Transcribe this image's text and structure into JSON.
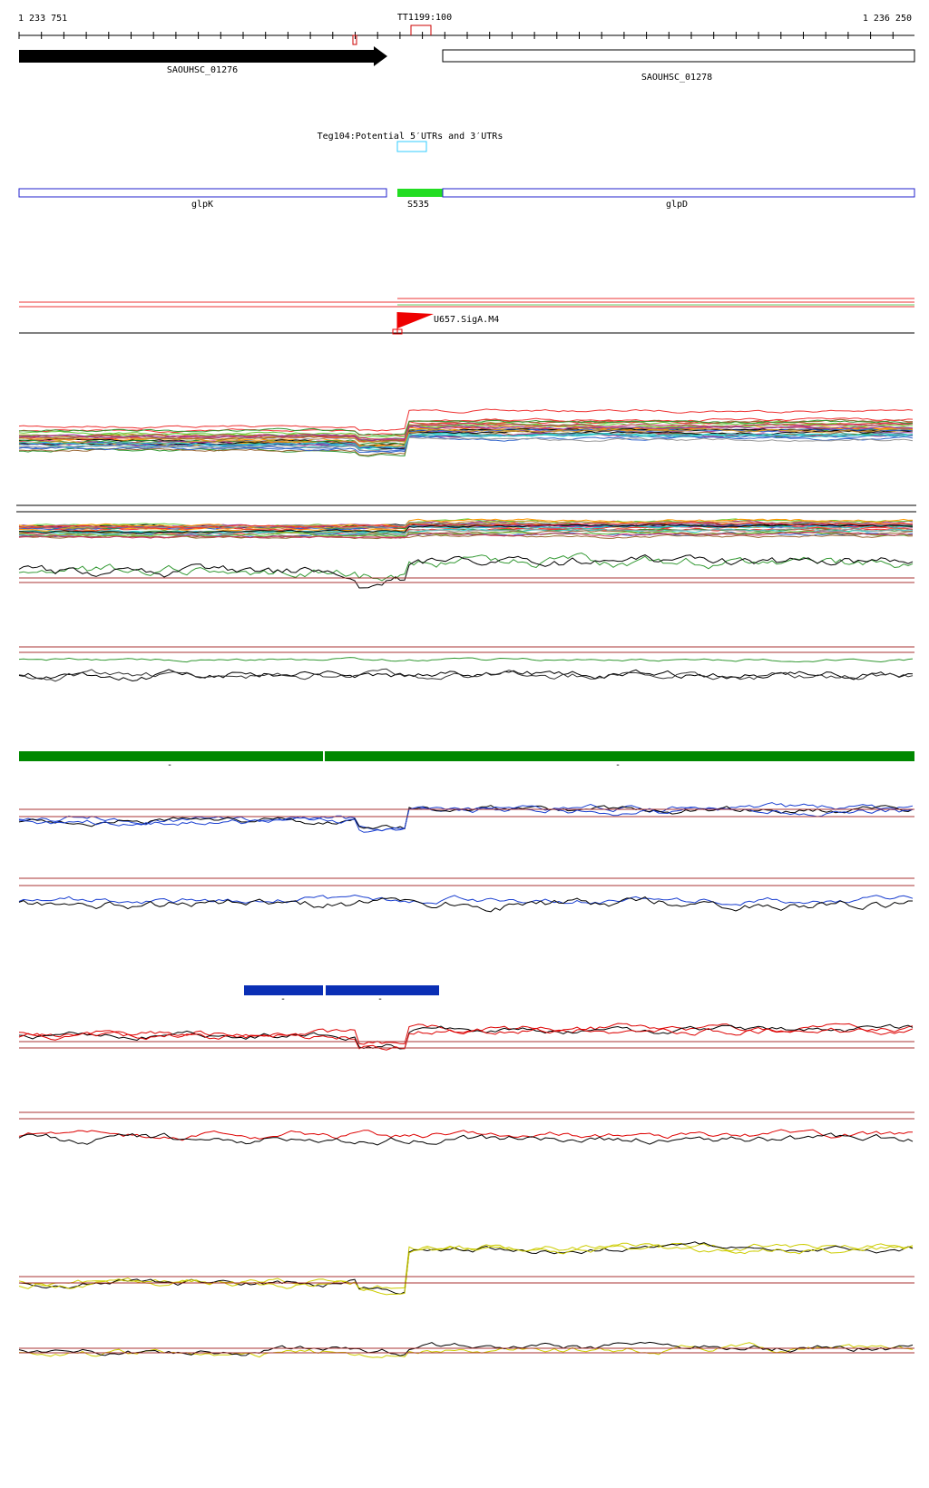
{
  "ruler": {
    "start": "1 233 751",
    "marker": "TT1199:100",
    "end": "1 236 250"
  },
  "genes": [
    {
      "label": "SAOUHSC_01276"
    },
    {
      "label": "SAOUHSC_01278"
    }
  ],
  "utr_track": {
    "label": "Teg104:Potential 5′UTRs and 3′UTRs"
  },
  "features": [
    {
      "label": "glpK"
    },
    {
      "label": "S535"
    },
    {
      "label": "glpD"
    }
  ],
  "promoter": {
    "label": "U657.SigA.M4"
  },
  "green_segments": [
    {
      "label": "-"
    },
    {
      "label": "-"
    }
  ],
  "blue_segments": [
    {
      "label": "-"
    },
    {
      "label": "-"
    }
  ]
}
